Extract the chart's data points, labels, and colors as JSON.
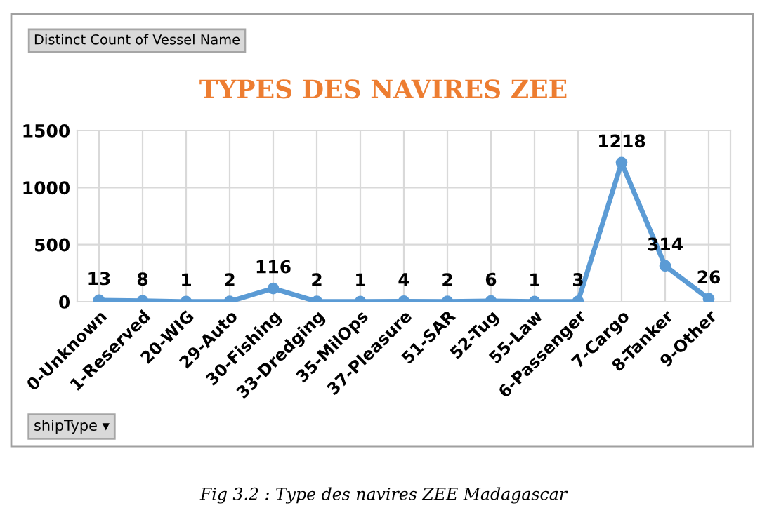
{
  "chart_data": {
    "type": "line",
    "title": "TYPES DES NAVIRES ZEE",
    "categories": [
      "0-Unknown",
      "1-Reserved",
      "20-WIG",
      "29-Auto",
      "30-Fishing",
      "33-Dredging",
      "35-MilOps",
      "37-Pleasure",
      "51-SAR",
      "52-Tug",
      "55-Law",
      "6-Passenger",
      "7-Cargo",
      "8-Tanker",
      "9-Other"
    ],
    "series": [
      {
        "color": "#5b9bd5",
        "values": [
          13,
          8,
          1,
          2,
          116,
          2,
          1,
          4,
          2,
          6,
          1,
          3,
          1218,
          314,
          26
        ]
      }
    ],
    "ylim": [
      0,
      1500
    ],
    "yticks": [
      0,
      500,
      1000,
      1500
    ],
    "grid": true,
    "marker": "circle",
    "line_style": "solid",
    "data_labels": true,
    "legend": false,
    "annotations": [
      "Distinct Count of Vessel Name",
      "shipType ▾",
      "Fig 3.2 : Type des navires ZEE Madagascar"
    ]
  }
}
